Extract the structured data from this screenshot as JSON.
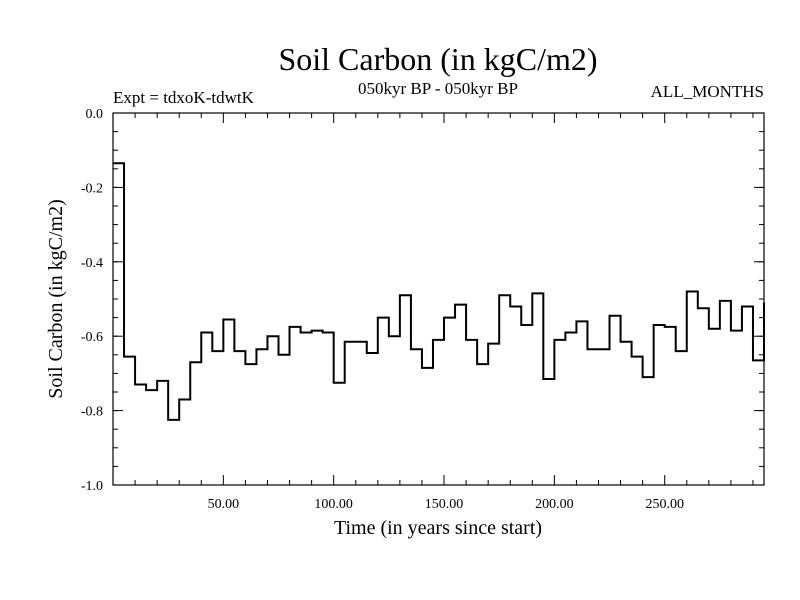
{
  "chart_data": {
    "type": "line",
    "title": "Soil Carbon (in kgC/m2)",
    "subtitle": "050kyr BP - 050kyr BP",
    "left_note": "Expt = tdxoK-tdwtK",
    "right_note": "ALL_MONTHS",
    "xlabel": "Time (in years since start)",
    "ylabel": "Soil Carbon (in kgC/m2)",
    "xlim": [
      0,
      295
    ],
    "ylim": [
      -1.0,
      0.0
    ],
    "x_ticks": [
      50,
      100,
      150,
      200,
      250
    ],
    "x_tick_labels": [
      "50.00",
      "100.00",
      "150.00",
      "200.00",
      "250.00"
    ],
    "y_ticks": [
      0.0,
      -0.2,
      -0.4,
      -0.6,
      -0.8,
      -1.0
    ],
    "y_tick_labels": [
      "0.0",
      "-0.2",
      "-0.4",
      "-0.6",
      "-0.8",
      "-1.0"
    ],
    "grid": false,
    "style": "step",
    "step": 5,
    "x_start": 0,
    "values": [
      -0.135,
      -0.655,
      -0.73,
      -0.745,
      -0.72,
      -0.825,
      -0.77,
      -0.67,
      -0.59,
      -0.64,
      -0.555,
      -0.64,
      -0.675,
      -0.635,
      -0.6,
      -0.65,
      -0.575,
      -0.59,
      -0.585,
      -0.59,
      -0.725,
      -0.615,
      -0.615,
      -0.645,
      -0.55,
      -0.6,
      -0.49,
      -0.635,
      -0.685,
      -0.61,
      -0.55,
      -0.515,
      -0.61,
      -0.675,
      -0.62,
      -0.49,
      -0.52,
      -0.57,
      -0.485,
      -0.715,
      -0.61,
      -0.59,
      -0.56,
      -0.635,
      -0.635,
      -0.545,
      -0.615,
      -0.655,
      -0.71,
      -0.57,
      -0.575,
      -0.64,
      -0.48,
      -0.525,
      -0.58,
      -0.505,
      -0.585,
      -0.52,
      -0.665,
      -0.51
    ]
  }
}
